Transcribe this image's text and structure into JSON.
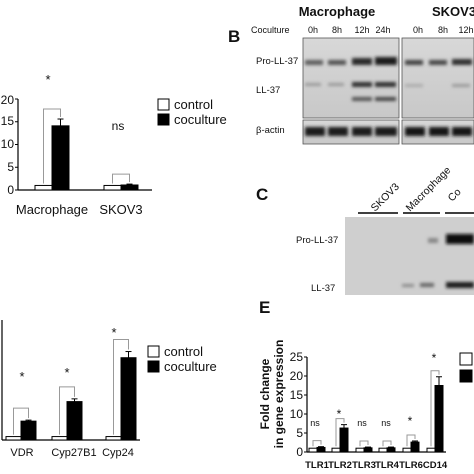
{
  "panel_labels": {
    "b": "B",
    "c": "C",
    "e": "E"
  },
  "panel_a": {
    "y_ticks": [
      "0",
      "5",
      "10",
      "15",
      "20"
    ],
    "x_categories": [
      "Macrophage",
      "SKOV3"
    ],
    "legend": [
      "control",
      "coculture"
    ],
    "significance": [
      "*",
      "ns"
    ]
  },
  "panel_b": {
    "headers": [
      "Macrophage",
      "SKOV3"
    ],
    "coculture_label": "Coculture",
    "timepoints_macrophage": [
      "0h",
      "8h",
      "12h",
      "24h"
    ],
    "timepoints_skov3": [
      "0h",
      "8h",
      "12h"
    ],
    "row_labels": [
      "Pro-LL-37",
      "LL-37",
      "β-actin"
    ]
  },
  "panel_c": {
    "lanes": [
      "SKOV3",
      "Macrophage",
      "Co"
    ],
    "row_labels": [
      "Pro-LL-37",
      "LL-37"
    ]
  },
  "panel_d": {
    "x_categories": [
      "VDR",
      "Cyp27B1",
      "Cyp24"
    ],
    "legend": [
      "control",
      "coculture"
    ],
    "significance": [
      "*",
      "*",
      "*"
    ]
  },
  "panel_e": {
    "ylabel_line1": "Fold change",
    "ylabel_line2": "in gene expression",
    "y_ticks": [
      "0",
      "5",
      "10",
      "15",
      "20",
      "25"
    ],
    "x_categories": [
      "TLR1",
      "TLR2",
      "TLR3",
      "TLR4",
      "TLR6",
      "CD14"
    ],
    "significance": [
      "ns",
      "*",
      "ns",
      "ns",
      "*",
      "*"
    ]
  },
  "chart_data": [
    {
      "type": "bar",
      "categories": [
        "Macrophage",
        "SKOV3"
      ],
      "series": [
        {
          "name": "control",
          "values": [
            1,
            1
          ]
        },
        {
          "name": "coculture",
          "values": [
            14.1,
            1.1
          ]
        }
      ],
      "errors": [
        [
          0,
          0
        ],
        [
          1.5,
          0.2
        ]
      ],
      "ylim": [
        0,
        20
      ],
      "colors": {
        "control": "#ffffff",
        "coculture": "#000000"
      }
    },
    {
      "type": "bar",
      "categories": [
        "VDR",
        "Cyp27B1",
        "Cyp24"
      ],
      "series": [
        {
          "name": "control",
          "values": [
            1,
            1,
            1
          ]
        },
        {
          "name": "coculture",
          "values": [
            5.5,
            11.2,
            24
          ]
        }
      ],
      "errors": [
        [
          0,
          0,
          0
        ],
        [
          0.3,
          0.8,
          1.8
        ]
      ],
      "ylim": [
        0,
        35
      ],
      "colors": {
        "control": "#ffffff",
        "coculture": "#000000"
      }
    },
    {
      "type": "bar",
      "categories": [
        "TLR1",
        "TLR2",
        "TLR3",
        "TLR4",
        "TLR6",
        "CD14"
      ],
      "series": [
        {
          "values": [
            1,
            1,
            1,
            1,
            1,
            1
          ]
        },
        {
          "values": [
            1.2,
            6.3,
            1.1,
            1.1,
            2.6,
            17.5
          ]
        }
      ],
      "errors": [
        [
          0,
          0,
          0,
          0,
          0,
          0
        ],
        [
          0.2,
          0.9,
          0.2,
          0.2,
          0.3,
          2.3
        ]
      ],
      "ylim": [
        0,
        25
      ],
      "colors": {
        "control": "#ffffff",
        "treated": "#000000"
      }
    }
  ]
}
